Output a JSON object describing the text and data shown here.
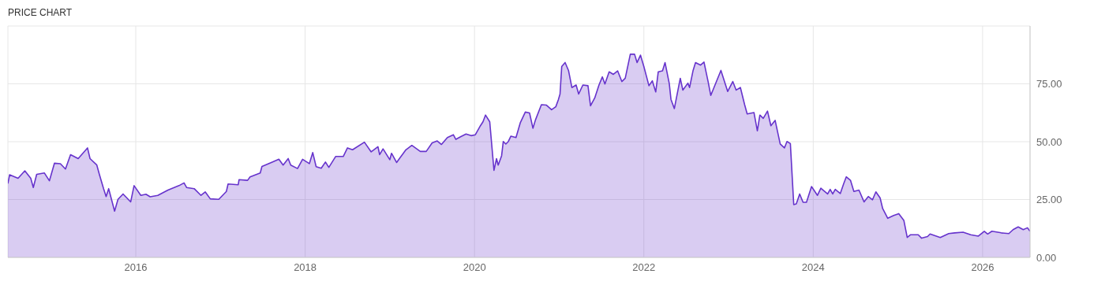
{
  "chart_data": {
    "type": "area",
    "title": "PRICE CHART",
    "x": [
      2014.49,
      2014.51,
      2014.61,
      2014.69,
      2014.76,
      2014.79,
      2014.83,
      2014.92,
      2014.98,
      2015.04,
      2015.11,
      2015.17,
      2015.23,
      2015.32,
      2015.43,
      2015.46,
      2015.54,
      2015.57,
      2015.62,
      2015.65,
      2015.68,
      2015.75,
      2015.79,
      2015.85,
      2015.94,
      2015.98,
      2016.06,
      2016.12,
      2016.17,
      2016.26,
      2016.38,
      2016.51,
      2016.57,
      2016.6,
      2016.69,
      2016.77,
      2016.82,
      2016.88,
      2016.98,
      2017.07,
      2017.09,
      2017.21,
      2017.22,
      2017.32,
      2017.35,
      2017.47,
      2017.49,
      2017.6,
      2017.69,
      2017.74,
      2017.8,
      2017.83,
      2017.91,
      2017.97,
      2018.05,
      2018.09,
      2018.13,
      2018.19,
      2018.24,
      2018.28,
      2018.36,
      2018.45,
      2018.5,
      2018.56,
      2018.7,
      2018.78,
      2018.86,
      2018.88,
      2018.92,
      2019,
      2019.02,
      2019.08,
      2019.12,
      2019.19,
      2019.26,
      2019.36,
      2019.43,
      2019.5,
      2019.56,
      2019.61,
      2019.68,
      2019.75,
      2019.78,
      2019.84,
      2019.9,
      2019.96,
      2020.01,
      2020.07,
      2020.1,
      2020.13,
      2020.18,
      2020.23,
      2020.26,
      2020.28,
      2020.32,
      2020.34,
      2020.37,
      2020.4,
      2020.43,
      2020.49,
      2020.54,
      2020.6,
      2020.65,
      2020.69,
      2020.72,
      2020.79,
      2020.85,
      2020.91,
      2020.96,
      2020.99,
      2021.01,
      2021.03,
      2021.07,
      2021.11,
      2021.15,
      2021.2,
      2021.23,
      2021.28,
      2021.34,
      2021.37,
      2021.42,
      2021.47,
      2021.51,
      2021.54,
      2021.59,
      2021.64,
      2021.69,
      2021.74,
      2021.78,
      2021.84,
      2021.89,
      2021.92,
      2021.96,
      2022,
      2022.06,
      2022.1,
      2022.14,
      2022.17,
      2022.22,
      2022.25,
      2022.3,
      2022.32,
      2022.36,
      2022.43,
      2022.46,
      2022.52,
      2022.54,
      2022.58,
      2022.61,
      2022.67,
      2022.71,
      2022.76,
      2022.79,
      2022.91,
      2022.99,
      2023.05,
      2023.09,
      2023.14,
      2023.19,
      2023.22,
      2023.3,
      2023.34,
      2023.37,
      2023.41,
      2023.46,
      2023.5,
      2023.55,
      2023.61,
      2023.66,
      2023.69,
      2023.73,
      2023.77,
      2023.8,
      2023.84,
      2023.88,
      2023.92,
      2023.98,
      2024.05,
      2024.09,
      2024.17,
      2024.2,
      2024.23,
      2024.26,
      2024.32,
      2024.36,
      2024.39,
      2024.44,
      2024.48,
      2024.54,
      2024.6,
      2024.65,
      2024.7,
      2024.74,
      2024.79,
      2024.82,
      2024.88,
      2024.95,
      2025.01,
      2025.07,
      2025.11,
      2025.15,
      2025.24,
      2025.28,
      2025.35,
      2025.38,
      2025.5,
      2025.6,
      2025.67,
      2025.77,
      2025.86,
      2025.95,
      2026.02,
      2026.06,
      2026.11,
      2026.22,
      2026.31,
      2026.36,
      2026.42,
      2026.48,
      2026.53,
      2026.56
    ],
    "series": [
      {
        "color": "#6633cc",
        "values": [
          31.9,
          35.7,
          34.2,
          37.4,
          34.2,
          30.2,
          35.9,
          36.5,
          33.1,
          40.7,
          40.5,
          38.2,
          44.4,
          42.7,
          47.3,
          42.7,
          39.9,
          35.9,
          29.7,
          26.3,
          29.7,
          20,
          25.1,
          27.4,
          24,
          31,
          26.8,
          27.3,
          26.2,
          26.8,
          29.1,
          31,
          32.2,
          30.2,
          29.7,
          26.8,
          28.3,
          25.3,
          25.1,
          28.5,
          31.7,
          31.4,
          33.6,
          33.3,
          34.8,
          36.5,
          39.3,
          41,
          42.4,
          39.9,
          42.7,
          39.9,
          38.4,
          42.4,
          40.5,
          45.3,
          39.2,
          38.5,
          41.2,
          38.9,
          43.6,
          43.6,
          47.3,
          46.5,
          49.8,
          45.6,
          47.8,
          44.4,
          46.9,
          42.2,
          45,
          41,
          43,
          46.5,
          48.4,
          45.8,
          45.8,
          49.5,
          50.3,
          48.8,
          51.8,
          53,
          51,
          52.2,
          53.3,
          52.6,
          53,
          56.9,
          58.6,
          61.5,
          58.6,
          37.6,
          42.7,
          39.9,
          43.9,
          50.1,
          49,
          50.1,
          52.4,
          51.8,
          58.1,
          62.8,
          62.4,
          55.8,
          59.4,
          66,
          65.8,
          63.8,
          65.1,
          68.1,
          70.6,
          82.5,
          84.2,
          80.8,
          73.4,
          74.5,
          70.6,
          74.5,
          74.2,
          65.5,
          68.9,
          74.5,
          78,
          74.9,
          80.2,
          79.1,
          80.6,
          76,
          77.4,
          87.8,
          87.8,
          84.2,
          87.4,
          82.5,
          74.2,
          76.3,
          71.5,
          80.2,
          80.6,
          84.2,
          75.1,
          68.3,
          64.3,
          77.4,
          72.3,
          75.3,
          73.4,
          80.6,
          84.2,
          83.1,
          84.4,
          75.7,
          70,
          80.8,
          71.7,
          76,
          72.3,
          73.4,
          66,
          62,
          62.6,
          54.7,
          61.5,
          60.1,
          63.2,
          56.9,
          59.2,
          49,
          47.3,
          50.1,
          49.2,
          22.8,
          23.1,
          27.4,
          23.8,
          23.8,
          30.6,
          26.8,
          29.9,
          27.4,
          29.4,
          27.4,
          29.4,
          27.6,
          31.9,
          34.8,
          33.3,
          28.5,
          29.1,
          24,
          26.3,
          24.9,
          28.3,
          25.7,
          21.1,
          16.9,
          18.1,
          18.9,
          16,
          8.6,
          9.8,
          9.8,
          8.3,
          9,
          10.1,
          8.6,
          10.3,
          10.6,
          10.9,
          9.8,
          9.2,
          11.3,
          10.1,
          11.3,
          10.6,
          10.3,
          12,
          13.2,
          12,
          12.8,
          11.3
        ]
      }
    ],
    "xlim": [
      2014.49,
      2026.56
    ],
    "xticks": [
      2016,
      2018,
      2020,
      2022,
      2024,
      2026
    ],
    "ylim": [
      0,
      100
    ],
    "yticks": [
      {
        "value": 0,
        "label": "0.00"
      },
      {
        "value": 25,
        "label": "25.00"
      },
      {
        "value": 50,
        "label": "50.00"
      },
      {
        "value": 75,
        "label": "75.00"
      }
    ],
    "grid": true
  }
}
